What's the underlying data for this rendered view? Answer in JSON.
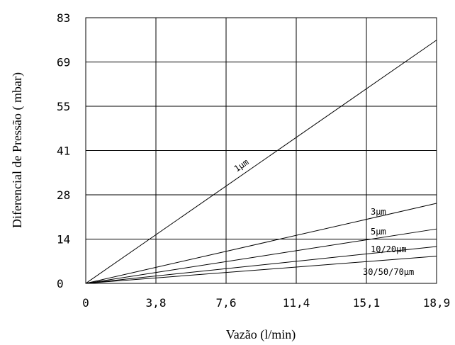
{
  "chart_data": {
    "type": "line",
    "title": "",
    "xlabel": "Vazão (l/min)",
    "ylabel": "Diferencial de Pressão ( mbar)",
    "xlim": [
      0,
      18.9
    ],
    "ylim": [
      0,
      83
    ],
    "x_ticks": [
      "0",
      "3,8",
      "7,6",
      "11,4",
      "15,1",
      "18,9"
    ],
    "x_tick_values": [
      0,
      3.8,
      7.6,
      11.4,
      15.1,
      18.9
    ],
    "y_ticks": [
      "0",
      "14",
      "28",
      "41",
      "55",
      "69",
      "83"
    ],
    "y_tick_values": [
      0,
      14,
      28,
      41,
      55,
      69,
      83
    ],
    "grid": true,
    "series": [
      {
        "name": "1µm",
        "x": [
          0,
          18.9
        ],
        "y": [
          0,
          76
        ]
      },
      {
        "name": "3µm",
        "x": [
          0,
          18.9
        ],
        "y": [
          0,
          25
        ]
      },
      {
        "name": "5µm",
        "x": [
          0,
          18.9
        ],
        "y": [
          0,
          17
        ]
      },
      {
        "name": "10/20µm",
        "x": [
          0,
          18.9
        ],
        "y": [
          0,
          11.5
        ]
      },
      {
        "name": "30/50/70µm",
        "x": [
          0,
          18.9
        ],
        "y": [
          0,
          8.5
        ]
      }
    ]
  }
}
